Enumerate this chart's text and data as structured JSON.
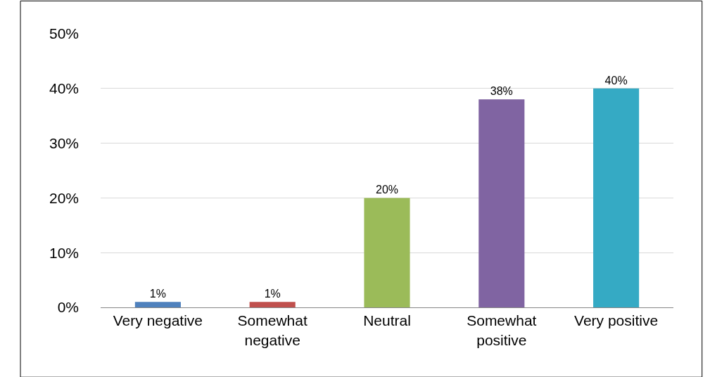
{
  "chart_data": {
    "type": "bar",
    "categories": [
      "Very negative",
      "Somewhat\nnegative",
      "Neutral",
      "Somewhat\npositive",
      "Very positive"
    ],
    "values": [
      1,
      1,
      20,
      38,
      40
    ],
    "colors": [
      "#4f81bd",
      "#c0504d",
      "#9bbb59",
      "#8064a2",
      "#35aac4"
    ],
    "value_labels": [
      "1%",
      "1%",
      "20%",
      "38%",
      "40%"
    ],
    "ylim": [
      0,
      50
    ],
    "yticks": [
      {
        "value": 0,
        "label": "0%"
      },
      {
        "value": 10,
        "label": "10%"
      },
      {
        "value": 20,
        "label": "20%"
      },
      {
        "value": 30,
        "label": "30%"
      },
      {
        "value": 40,
        "label": "40%"
      },
      {
        "value": 50,
        "label": "50%"
      }
    ],
    "grid": "y"
  }
}
